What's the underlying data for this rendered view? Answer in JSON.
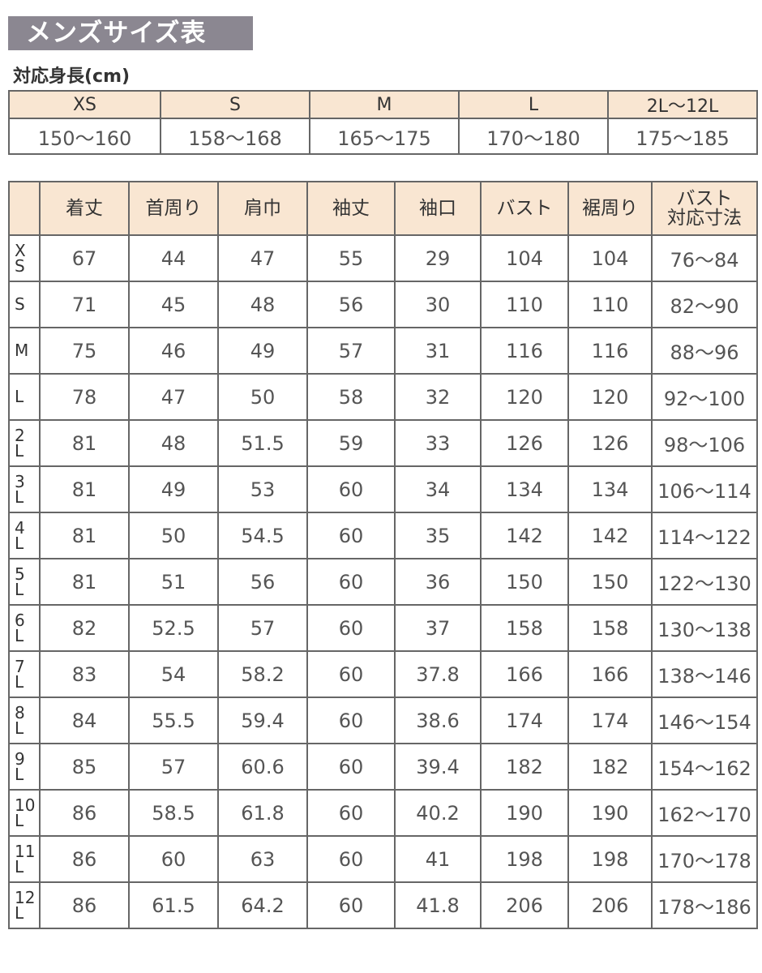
{
  "title": "メンズサイズ表",
  "height_section": {
    "label": "対応身長(cm)",
    "sizes": [
      "XS",
      "S",
      "M",
      "L",
      "2L〜12L"
    ],
    "ranges": [
      "150〜160",
      "158〜168",
      "165〜175",
      "170〜180",
      "175〜185"
    ]
  },
  "size_table": {
    "headers": [
      "",
      "着丈",
      "首周り",
      "肩巾",
      "袖丈",
      "袖口",
      "バスト",
      "裾周り",
      "バスト\n対応寸法"
    ],
    "rows": [
      [
        "X\nS",
        "67",
        "44",
        "47",
        "55",
        "29",
        "104",
        "104",
        "76〜84"
      ],
      [
        "S",
        "71",
        "45",
        "48",
        "56",
        "30",
        "110",
        "110",
        "82〜90"
      ],
      [
        "M",
        "75",
        "46",
        "49",
        "57",
        "31",
        "116",
        "116",
        "88〜96"
      ],
      [
        "L",
        "78",
        "47",
        "50",
        "58",
        "32",
        "120",
        "120",
        "92〜100"
      ],
      [
        "2\nL",
        "81",
        "48",
        "51.5",
        "59",
        "33",
        "126",
        "126",
        "98〜106"
      ],
      [
        "3\nL",
        "81",
        "49",
        "53",
        "60",
        "34",
        "134",
        "134",
        "106〜114"
      ],
      [
        "4\nL",
        "81",
        "50",
        "54.5",
        "60",
        "35",
        "142",
        "142",
        "114〜122"
      ],
      [
        "5\nL",
        "81",
        "51",
        "56",
        "60",
        "36",
        "150",
        "150",
        "122〜130"
      ],
      [
        "6\nL",
        "82",
        "52.5",
        "57",
        "60",
        "37",
        "158",
        "158",
        "130〜138"
      ],
      [
        "7\nL",
        "83",
        "54",
        "58.2",
        "60",
        "37.8",
        "166",
        "166",
        "138〜146"
      ],
      [
        "8\nL",
        "84",
        "55.5",
        "59.4",
        "60",
        "38.6",
        "174",
        "174",
        "146〜154"
      ],
      [
        "9\nL",
        "85",
        "57",
        "60.6",
        "60",
        "39.4",
        "182",
        "182",
        "154〜162"
      ],
      [
        "10\nL",
        "86",
        "58.5",
        "61.8",
        "60",
        "40.2",
        "190",
        "190",
        "162〜170"
      ],
      [
        "11\nL",
        "86",
        "60",
        "63",
        "60",
        "41",
        "198",
        "198",
        "170〜178"
      ],
      [
        "12\nL",
        "86",
        "61.5",
        "64.2",
        "60",
        "41.8",
        "206",
        "206",
        "178〜186"
      ]
    ]
  },
  "colors": {
    "title_bg": "#8b8791",
    "header_bg": "#f9e6d2",
    "border": "#666666"
  }
}
